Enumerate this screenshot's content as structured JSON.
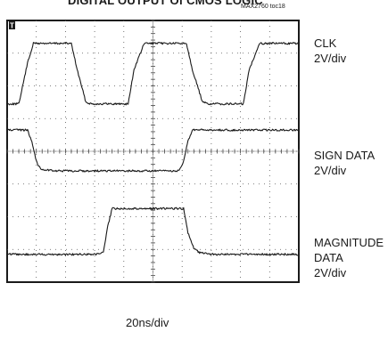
{
  "header": {
    "title": "DIGITAL OUTPUT Of CMOS LOGIC",
    "figure_id": "MAX2760 toc18"
  },
  "chart_data": {
    "type": "line",
    "title": "DIGITAL OUTPUT Of CMOS LOGIC",
    "xlabel": "20ns/div",
    "ylabel": "",
    "grid": true,
    "divisions": {
      "x": 10,
      "y": 8
    },
    "x_unit": "ns",
    "x_per_div": 20,
    "xlim": [
      0,
      200
    ],
    "trigger_marker": "T",
    "series": [
      {
        "name": "CLK",
        "scale": "2V/div",
        "low_div": 5.45,
        "high_div": 7.3,
        "x": [
          0,
          8,
          14,
          18,
          28,
          44,
          48,
          54,
          58,
          68,
          83,
          87,
          94,
          98,
          108,
          123,
          127,
          134,
          138,
          148,
          162,
          166,
          173,
          177,
          185,
          200
        ],
        "y": [
          5.45,
          5.45,
          6.7,
          7.3,
          7.3,
          7.3,
          6.5,
          5.5,
          5.45,
          5.45,
          5.45,
          6.5,
          7.3,
          7.3,
          7.3,
          7.3,
          6.5,
          5.5,
          5.45,
          5.45,
          5.45,
          6.5,
          7.3,
          7.3,
          7.3,
          7.3
        ]
      },
      {
        "name": "SIGN DATA",
        "scale": "2V/div",
        "low_div": 3.4,
        "high_div": 4.65,
        "x": [
          0,
          14,
          17,
          20,
          23,
          35,
          100,
          118,
          121,
          124,
          127,
          140,
          200
        ],
        "y": [
          4.65,
          4.65,
          4.3,
          3.7,
          3.45,
          3.4,
          3.4,
          3.4,
          3.7,
          4.3,
          4.65,
          4.65,
          4.65
        ]
      },
      {
        "name": "MAGNITUDE DATA",
        "scale": "2V/div",
        "low_div": 0.85,
        "high_div": 2.25,
        "x": [
          0,
          60,
          66,
          69,
          72,
          76,
          118,
          121,
          124,
          128,
          132,
          140,
          200
        ],
        "y": [
          0.85,
          0.85,
          0.9,
          1.7,
          2.25,
          2.25,
          2.25,
          2.25,
          1.5,
          1.05,
          0.9,
          0.85,
          0.85
        ]
      }
    ]
  }
}
